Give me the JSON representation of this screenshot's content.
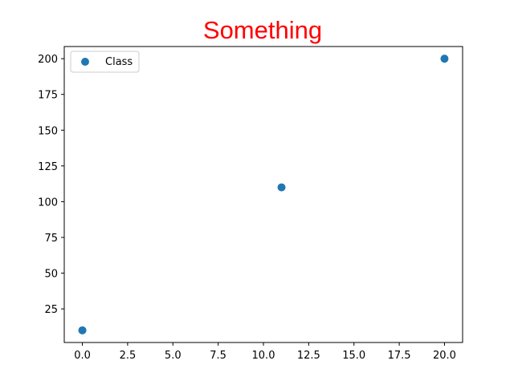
{
  "chart_data": {
    "type": "scatter",
    "title": "Something",
    "title_color": "#ff0000",
    "xlabel": "",
    "ylabel": "",
    "xlim": [
      -1.0,
      21.0
    ],
    "ylim": [
      1.5,
      208.5
    ],
    "xticks": [
      0.0,
      2.5,
      5.0,
      7.5,
      10.0,
      12.5,
      15.0,
      17.5,
      20.0
    ],
    "xtick_labels": [
      "0.0",
      "2.5",
      "5.0",
      "7.5",
      "10.0",
      "12.5",
      "15.0",
      "17.5",
      "20.0"
    ],
    "yticks": [
      25,
      50,
      75,
      100,
      125,
      150,
      175,
      200
    ],
    "ytick_labels": [
      "25",
      "50",
      "75",
      "100",
      "125",
      "150",
      "175",
      "200"
    ],
    "grid": false,
    "legend_position": "upper-left",
    "series": [
      {
        "name": "Class",
        "color": "#1f77b4",
        "x": [
          0,
          11,
          20
        ],
        "y": [
          10,
          110,
          200
        ]
      }
    ]
  }
}
